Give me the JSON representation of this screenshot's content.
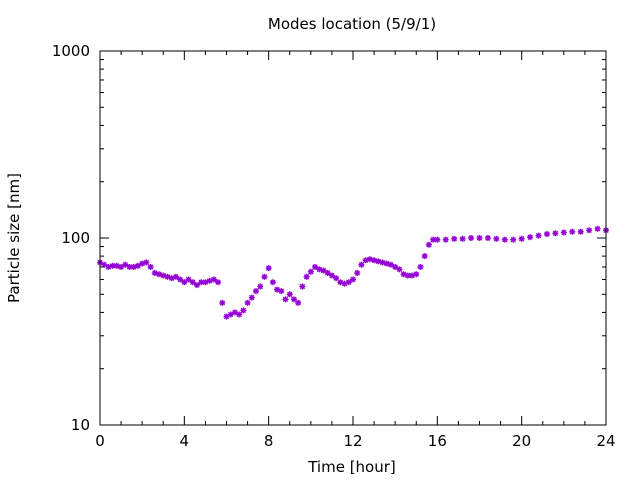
{
  "chart_data": {
    "type": "scatter",
    "title": "Modes location (5/9/1)",
    "xlabel": "Time [hour]",
    "ylabel": "Particle size [nm]",
    "xlim": [
      0,
      24
    ],
    "ylim": [
      10,
      1000
    ],
    "yscale": "log",
    "xticks": [
      0,
      4,
      8,
      12,
      16,
      20,
      24
    ],
    "xtick_labels": [
      "0",
      "4",
      "8",
      "12",
      "16",
      "20",
      "24"
    ],
    "yticks": [
      10,
      100,
      1000
    ],
    "ytick_labels": [
      "10",
      "100",
      "1000"
    ],
    "grid": false,
    "legend": "none",
    "marker_color": "#9400d3",
    "series": [
      {
        "x": [
          0.0,
          0.2,
          0.4,
          0.6,
          0.8,
          1.0,
          1.2,
          1.4,
          1.6,
          1.8,
          2.0,
          2.2,
          2.4,
          2.6,
          2.8,
          3.0,
          3.2,
          3.4,
          3.6,
          3.8,
          4.0,
          4.2,
          4.4,
          4.6,
          4.8,
          5.0,
          5.2,
          5.4,
          5.6,
          5.8,
          6.0,
          6.2,
          6.4,
          6.6,
          6.8,
          7.0,
          7.2,
          7.4,
          7.6,
          7.8,
          8.0,
          8.2,
          8.4,
          8.6,
          8.8,
          9.0,
          9.2,
          9.4,
          9.6,
          9.8,
          10.0,
          10.2,
          10.4,
          10.6,
          10.8,
          11.0,
          11.2,
          11.4,
          11.6,
          11.8,
          12.0,
          12.2,
          12.4,
          12.6,
          12.8,
          13.0,
          13.2,
          13.4,
          13.6,
          13.8,
          14.0,
          14.2,
          14.4,
          14.6,
          14.8,
          15.0,
          15.2,
          15.4,
          15.6,
          15.8,
          16.0,
          16.4,
          16.8,
          17.2,
          17.6,
          18.0,
          18.4,
          18.8,
          19.2,
          19.6,
          20.0,
          20.4,
          20.8,
          21.2,
          21.6,
          22.0,
          22.4,
          22.8,
          23.2,
          23.6,
          24.0
        ],
        "y": [
          74,
          72,
          70,
          71,
          71,
          70,
          72,
          70,
          70,
          71,
          73,
          74,
          70,
          65,
          64,
          63,
          62,
          61,
          62,
          60,
          58,
          60,
          58,
          56,
          58,
          58,
          59,
          60,
          58,
          45,
          38,
          39,
          40,
          39,
          41,
          45,
          48,
          52,
          55,
          62,
          69,
          58,
          53,
          52,
          47,
          50,
          47,
          45,
          55,
          62,
          66,
          70,
          68,
          67,
          65,
          63,
          61,
          58,
          57,
          58,
          60,
          65,
          72,
          76,
          77,
          76,
          75,
          74,
          73,
          72,
          70,
          68,
          64,
          63,
          63,
          64,
          70,
          80,
          92,
          98,
          98,
          98,
          99,
          99,
          100,
          100,
          100,
          99,
          98,
          98,
          99,
          101,
          103,
          105,
          106,
          107,
          108,
          108,
          110,
          112,
          110
        ]
      }
    ]
  }
}
